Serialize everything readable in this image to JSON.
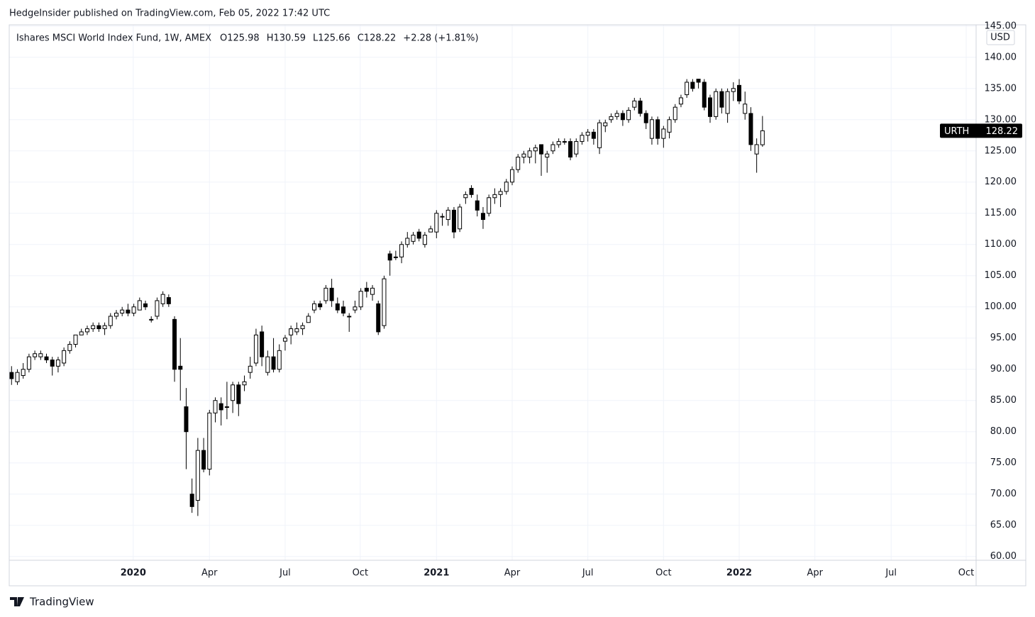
{
  "header": "HedgeInsider published on TradingView.com, Feb 05, 2022 17:42 UTC",
  "footer": "TradingView",
  "chart_data": {
    "type": "candlestick",
    "legend": {
      "symbol": "Ishares MSCI World Index Fund, 1W, AMEX",
      "values": [
        "O125.98",
        "H130.59",
        "L125.66",
        "C128.22",
        "+2.28 (+1.81%)"
      ]
    },
    "price_label": "URTH",
    "currency": "USD",
    "up_color": "#ffffff",
    "down_color": "#000000",
    "wick_color": "#000000",
    "grid": true,
    "open": [
      89.5,
      88,
      89,
      90,
      92,
      92,
      92,
      91.5,
      90.5,
      91,
      93,
      94,
      95.5,
      96,
      96.5,
      97,
      96.5,
      97,
      98.5,
      99,
      99.5,
      99,
      99.5,
      100.5,
      98,
      98.5,
      100.5,
      101.5,
      98,
      90.5,
      84,
      70,
      69,
      77,
      74,
      83,
      84.5,
      84,
      85,
      87.5,
      87.5,
      89.5,
      91,
      96,
      89.5,
      92,
      90,
      94.5,
      95.5,
      96,
      96.5,
      97.5,
      99.5,
      100.5,
      101,
      103,
      100.5,
      100,
      98.5,
      99.5,
      100,
      103,
      102,
      100.5,
      97,
      108.5,
      108,
      108,
      110,
      110.5,
      112,
      110,
      112,
      112,
      114.5,
      114,
      115.5,
      112.5,
      117.5,
      119,
      117,
      115,
      115,
      117.5,
      118,
      118.5,
      120,
      122,
      124,
      124,
      125,
      126,
      124,
      125,
      126,
      126.5,
      126.5,
      124.5,
      126.5,
      127.5,
      128,
      125.5,
      129,
      130,
      130.5,
      131,
      130,
      132,
      133,
      131,
      127,
      130,
      127,
      128,
      130,
      132.5,
      134,
      136,
      136.5,
      136,
      133.5,
      130.5,
      134.5,
      131,
      134.5,
      135.5,
      131,
      131,
      124.5,
      125.98
    ],
    "high": [
      90.5,
      90,
      91,
      92.5,
      93,
      93,
      92.5,
      92,
      92,
      93.5,
      94.5,
      95.5,
      96.5,
      97,
      97.5,
      97.5,
      97.5,
      99,
      99.5,
      100,
      100.5,
      100.5,
      101.5,
      101,
      98.5,
      101.5,
      102.5,
      102,
      98.5,
      95,
      87,
      72.5,
      79,
      79,
      83.5,
      85.5,
      85.5,
      88,
      88,
      88,
      89,
      92,
      96.5,
      97,
      93,
      95,
      94,
      95.5,
      97,
      97.5,
      97.5,
      99,
      101,
      101,
      103.5,
      104.5,
      101.5,
      101,
      99,
      101,
      103,
      104,
      103.5,
      101,
      105,
      109,
      109,
      110.5,
      112,
      112,
      112.5,
      112,
      113,
      115.5,
      115,
      116,
      116,
      116.5,
      118.5,
      119.5,
      118,
      116,
      118,
      119,
      119,
      120.5,
      122.5,
      124.5,
      125,
      125.5,
      126,
      126,
      125,
      126.5,
      127,
      127,
      127,
      127,
      128,
      128.5,
      128.5,
      130,
      130,
      131,
      131.5,
      131.5,
      132,
      133.5,
      133.5,
      131.5,
      130.5,
      130.5,
      129,
      130.5,
      132.5,
      134,
      136.5,
      136.5,
      136.5,
      136.5,
      134,
      135,
      135,
      135,
      136,
      136.5,
      134.5,
      132,
      127,
      130.59
    ],
    "low": [
      87.5,
      87.5,
      88.5,
      89.5,
      91.5,
      91.5,
      91,
      89,
      89.5,
      90.5,
      92.5,
      93.5,
      95.5,
      95.5,
      96,
      96,
      95.5,
      96.5,
      98,
      98.5,
      98.5,
      98.5,
      99.5,
      99.5,
      97.5,
      98,
      100,
      100,
      88,
      85,
      74,
      67,
      66.5,
      73.5,
      73,
      81.5,
      81,
      82,
      83,
      82.5,
      86.5,
      88.5,
      90.5,
      90.5,
      89,
      89.5,
      89.5,
      93,
      94,
      95.5,
      95.5,
      97.5,
      99,
      99.5,
      100.5,
      100,
      99,
      98.5,
      96,
      99,
      99.5,
      101.5,
      101,
      95.5,
      96.5,
      105,
      107.5,
      107,
      109.5,
      110,
      110.5,
      109.5,
      112,
      111,
      113,
      113,
      111,
      112,
      116.5,
      117.5,
      114.5,
      112.5,
      114.5,
      116.5,
      116,
      118,
      119.5,
      121.5,
      123,
      123,
      123,
      121,
      121.5,
      124.5,
      125.5,
      126,
      123.5,
      124,
      126,
      126.5,
      126,
      124.5,
      128,
      129.5,
      130,
      129,
      129.5,
      131.5,
      130.5,
      128.5,
      126,
      126,
      125.5,
      127,
      129.5,
      132,
      133.5,
      134.5,
      135,
      131.5,
      129.5,
      130,
      131,
      129.5,
      133,
      132.5,
      130,
      125,
      121.5,
      125.66
    ],
    "close": [
      88.5,
      89.5,
      90,
      92,
      92.5,
      92.5,
      91.5,
      90.5,
      91.5,
      93,
      94,
      95.5,
      96,
      96.5,
      97,
      96.5,
      97,
      98.5,
      99,
      99.5,
      99,
      100,
      101,
      100,
      98,
      101,
      102,
      100.5,
      90,
      90,
      80,
      68,
      77,
      74,
      83,
      85,
      83.5,
      84,
      87.5,
      84.5,
      88,
      90.5,
      95.5,
      92,
      92,
      90,
      93,
      95,
      96.5,
      96.5,
      97,
      98.5,
      100.5,
      100,
      103,
      101,
      99.5,
      99,
      98.5,
      100,
      102.5,
      102.5,
      103,
      96,
      104.5,
      107.5,
      108,
      110,
      111,
      111.5,
      111,
      111.5,
      112.5,
      115,
      114.5,
      115.5,
      112,
      116,
      118,
      118,
      115.5,
      114,
      117.5,
      118,
      118.5,
      120,
      122,
      124,
      124.5,
      125,
      125.5,
      124.5,
      124.5,
      126,
      126.5,
      126.5,
      124,
      126.5,
      127.5,
      128,
      127,
      129.5,
      129.5,
      130.5,
      131,
      130,
      131.5,
      133,
      131,
      129.5,
      130,
      127,
      128.5,
      130,
      132,
      133.5,
      136,
      135,
      136,
      132,
      130.5,
      134.5,
      132,
      134.5,
      135,
      133,
      132.5,
      126,
      126,
      128.22
    ],
    "xlim": [
      -0.4,
      165.7
    ],
    "xticks": [
      {
        "value": 20.9,
        "label": "2020"
      },
      {
        "value": 34,
        "label": "Apr"
      },
      {
        "value": 47,
        "label": "Jul"
      },
      {
        "value": 59.9,
        "label": "Oct"
      },
      {
        "value": 73,
        "label": "2021"
      },
      {
        "value": 86,
        "label": "Apr"
      },
      {
        "value": 99,
        "label": "Jul"
      },
      {
        "value": 112,
        "label": "Oct"
      },
      {
        "value": 125,
        "label": "2022"
      },
      {
        "value": 138,
        "label": "Apr"
      },
      {
        "value": 151.1,
        "label": "Jul"
      },
      {
        "value": 164,
        "label": "Oct"
      }
    ],
    "ylim": [
      59.4,
      145.2
    ],
    "yticks": [
      {
        "value": 60,
        "label": "60.00"
      },
      {
        "value": 65,
        "label": "65.00"
      },
      {
        "value": 70,
        "label": "70.00"
      },
      {
        "value": 75,
        "label": "75.00"
      },
      {
        "value": 80,
        "label": "80.00"
      },
      {
        "value": 85,
        "label": "85.00"
      },
      {
        "value": 90,
        "label": "90.00"
      },
      {
        "value": 95,
        "label": "95.00"
      },
      {
        "value": 100,
        "label": "100.00"
      },
      {
        "value": 105,
        "label": "105.00"
      },
      {
        "value": 110,
        "label": "110.00"
      },
      {
        "value": 115,
        "label": "115.00"
      },
      {
        "value": 120,
        "label": "120.00"
      },
      {
        "value": 125,
        "label": "125.00"
      },
      {
        "value": 130,
        "label": "130.00"
      },
      {
        "value": 135,
        "label": "135.00"
      },
      {
        "value": 140,
        "label": "140.00"
      },
      {
        "value": 145,
        "label": "145.00"
      }
    ]
  }
}
